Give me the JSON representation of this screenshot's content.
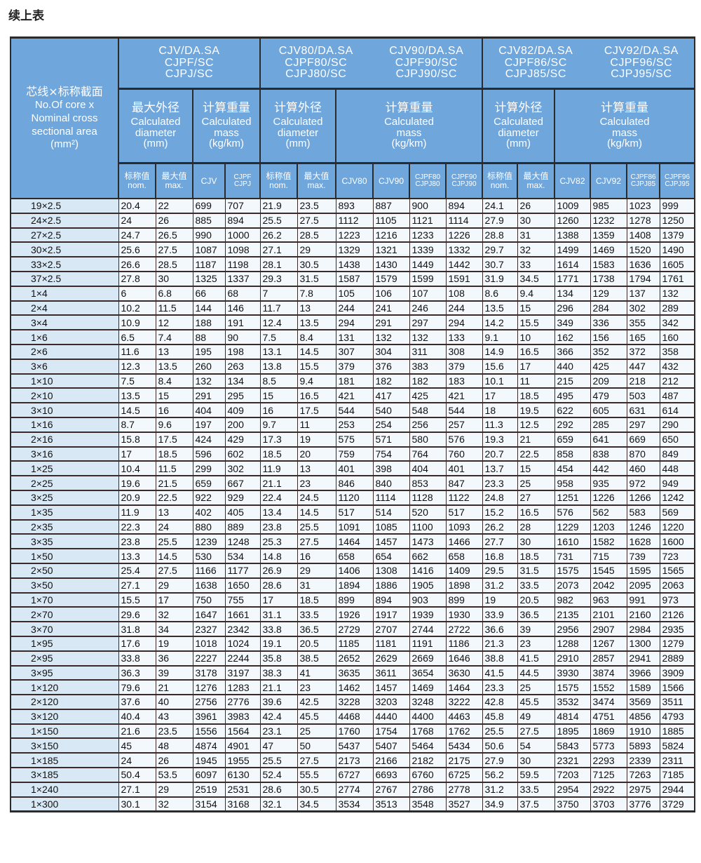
{
  "title": "续上表",
  "header": {
    "first_col": {
      "cn": "芯线×标称截面",
      "en1": "No.Of core x",
      "en2": "Nominal cross",
      "en3": "sectional area",
      "en4": "(mm²)"
    },
    "models": [
      {
        "lines": [
          "CJV/DA.SA",
          "CJPF/SC",
          "CJPJ/SC"
        ]
      },
      {
        "lines": [
          "CJV80/DA.SA",
          "CJPF80/SC",
          "CJPJ80/SC"
        ],
        "lines2": [
          "CJV90/DA.SA",
          "CJPF90/SC",
          "CJPJ90/SC"
        ]
      },
      {
        "lines": [
          "CJV82/DA.SA",
          "CJPF86/SC",
          "CJPJ85/SC"
        ],
        "lines2": [
          "CJV92/DA.SA",
          "CJPF96/SC",
          "CJPJ95/SC"
        ]
      }
    ],
    "groups": [
      {
        "cn": "最大外径",
        "en1": "Calculated",
        "en2": "diameter",
        "en3": "(mm)"
      },
      {
        "cn": "计算重量",
        "en1": "Calculated",
        "en2": "mass",
        "en3": "(kg/km)"
      },
      {
        "cn": "计算外径",
        "en1": "Calculated",
        "en2": "diameter",
        "en3": "(mm)"
      },
      {
        "cn": "计算重量",
        "en1": "Calculated",
        "en2": "mass",
        "en3": "(kg/km)"
      },
      {
        "cn": "计算外径",
        "en1": "Calculated",
        "en2": "diameter",
        "en3": "(mm)"
      },
      {
        "cn": "计算重量",
        "en1": "Calculated",
        "en2": "mass",
        "en3": "(kg/km)"
      }
    ],
    "subcols": [
      [
        "标称值",
        "nom."
      ],
      [
        "最大值",
        "max."
      ],
      [
        "CJV",
        ""
      ],
      [
        "CJPF",
        "CJPJ"
      ],
      [
        "标称值",
        "nom."
      ],
      [
        "最大值",
        "max."
      ],
      [
        "CJV80",
        ""
      ],
      [
        "CJV90",
        ""
      ],
      [
        "CJPF80",
        "CJPJ80"
      ],
      [
        "CJPF90",
        "CJPJ90"
      ],
      [
        "标称值",
        "nom."
      ],
      [
        "最大值",
        "max."
      ],
      [
        "CJV82",
        ""
      ],
      [
        "CJV92",
        ""
      ],
      [
        "CJPF86",
        "CJPJ85"
      ],
      [
        "CJPF96",
        "CJPJ95"
      ]
    ]
  },
  "rows": [
    [
      "19×2.5",
      "20.4",
      "22",
      "699",
      "707",
      "21.9",
      "23.5",
      "893",
      "887",
      "900",
      "894",
      "24.1",
      "26",
      "1009",
      "985",
      "1023",
      "999"
    ],
    [
      "24×2.5",
      "24",
      "26",
      "885",
      "894",
      "25.5",
      "27.5",
      "1112",
      "1105",
      "1121",
      "1114",
      "27.9",
      "30",
      "1260",
      "1232",
      "1278",
      "1250"
    ],
    [
      "27×2.5",
      "24.7",
      "26.5",
      "990",
      "1000",
      "26.2",
      "28.5",
      "1223",
      "1216",
      "1233",
      "1226",
      "28.8",
      "31",
      "1388",
      "1359",
      "1408",
      "1379"
    ],
    [
      "30×2.5",
      "25.6",
      "27.5",
      "1087",
      "1098",
      "27.1",
      "29",
      "1329",
      "1321",
      "1339",
      "1332",
      "29.7",
      "32",
      "1499",
      "1469",
      "1520",
      "1490"
    ],
    [
      "33×2.5",
      "26.6",
      "28.5",
      "1187",
      "1198",
      "28.1",
      "30.5",
      "1438",
      "1430",
      "1449",
      "1442",
      "30.7",
      "33",
      "1614",
      "1583",
      "1636",
      "1605"
    ],
    [
      "37×2.5",
      "27.8",
      "30",
      "1325",
      "1337",
      "29.3",
      "31.5",
      "1587",
      "1579",
      "1599",
      "1591",
      "31.9",
      "34.5",
      "1771",
      "1738",
      "1794",
      "1761"
    ],
    [
      "1×4",
      "6",
      "6.8",
      "66",
      "68",
      "7",
      "7.8",
      "105",
      "106",
      "107",
      "108",
      "8.6",
      "9.4",
      "134",
      "129",
      "137",
      "132"
    ],
    [
      "2×4",
      "10.2",
      "11.5",
      "144",
      "146",
      "11.7",
      "13",
      "244",
      "241",
      "246",
      "244",
      "13.5",
      "15",
      "296",
      "284",
      "302",
      "289"
    ],
    [
      "3×4",
      "10.9",
      "12",
      "188",
      "191",
      "12.4",
      "13.5",
      "294",
      "291",
      "297",
      "294",
      "14.2",
      "15.5",
      "349",
      "336",
      "355",
      "342"
    ],
    [
      "1×6",
      "6.5",
      "7.4",
      "88",
      "90",
      "7.5",
      "8.4",
      "131",
      "132",
      "132",
      "133",
      "9.1",
      "10",
      "162",
      "156",
      "165",
      "160"
    ],
    [
      "2×6",
      "11.6",
      "13",
      "195",
      "198",
      "13.1",
      "14.5",
      "307",
      "304",
      "311",
      "308",
      "14.9",
      "16.5",
      "366",
      "352",
      "372",
      "358"
    ],
    [
      "3×6",
      "12.3",
      "13.5",
      "260",
      "263",
      "13.8",
      "15.5",
      "379",
      "376",
      "383",
      "379",
      "15.6",
      "17",
      "440",
      "425",
      "447",
      "432"
    ],
    [
      "1×10",
      "7.5",
      "8.4",
      "132",
      "134",
      "8.5",
      "9.4",
      "181",
      "182",
      "182",
      "183",
      "10.1",
      "11",
      "215",
      "209",
      "218",
      "212"
    ],
    [
      "2×10",
      "13.5",
      "15",
      "291",
      "295",
      "15",
      "16.5",
      "421",
      "417",
      "425",
      "421",
      "17",
      "18.5",
      "495",
      "479",
      "503",
      "487"
    ],
    [
      "3×10",
      "14.5",
      "16",
      "404",
      "409",
      "16",
      "17.5",
      "544",
      "540",
      "548",
      "544",
      "18",
      "19.5",
      "622",
      "605",
      "631",
      "614"
    ],
    [
      "1×16",
      "8.7",
      "9.6",
      "197",
      "200",
      "9.7",
      "11",
      "253",
      "254",
      "256",
      "257",
      "11.3",
      "12.5",
      "292",
      "285",
      "297",
      "290"
    ],
    [
      "2×16",
      "15.8",
      "17.5",
      "424",
      "429",
      "17.3",
      "19",
      "575",
      "571",
      "580",
      "576",
      "19.3",
      "21",
      "659",
      "641",
      "669",
      "650"
    ],
    [
      "3×16",
      "17",
      "18.5",
      "596",
      "602",
      "18.5",
      "20",
      "759",
      "754",
      "764",
      "760",
      "20.7",
      "22.5",
      "858",
      "838",
      "870",
      "849"
    ],
    [
      "1×25",
      "10.4",
      "11.5",
      "299",
      "302",
      "11.9",
      "13",
      "401",
      "398",
      "404",
      "401",
      "13.7",
      "15",
      "454",
      "442",
      "460",
      "448"
    ],
    [
      "2×25",
      "19.6",
      "21.5",
      "659",
      "667",
      "21.1",
      "23",
      "846",
      "840",
      "853",
      "847",
      "23.3",
      "25",
      "958",
      "935",
      "972",
      "949"
    ],
    [
      "3×25",
      "20.9",
      "22.5",
      "922",
      "929",
      "22.4",
      "24.5",
      "1120",
      "1114",
      "1128",
      "1122",
      "24.8",
      "27",
      "1251",
      "1226",
      "1266",
      "1242"
    ],
    [
      "1×35",
      "11.9",
      "13",
      "402",
      "405",
      "13.4",
      "14.5",
      "517",
      "514",
      "520",
      "517",
      "15.2",
      "16.5",
      "576",
      "562",
      "583",
      "569"
    ],
    [
      "2×35",
      "22.3",
      "24",
      "880",
      "889",
      "23.8",
      "25.5",
      "1091",
      "1085",
      "1100",
      "1093",
      "26.2",
      "28",
      "1229",
      "1203",
      "1246",
      "1220"
    ],
    [
      "3×35",
      "23.8",
      "25.5",
      "1239",
      "1248",
      "25.3",
      "27.5",
      "1464",
      "1457",
      "1473",
      "1466",
      "27.7",
      "30",
      "1610",
      "1582",
      "1628",
      "1600"
    ],
    [
      "1×50",
      "13.3",
      "14.5",
      "530",
      "534",
      "14.8",
      "16",
      "658",
      "654",
      "662",
      "658",
      "16.8",
      "18.5",
      "731",
      "715",
      "739",
      "723"
    ],
    [
      "2×50",
      "25.4",
      "27.5",
      "1166",
      "1177",
      "26.9",
      "29",
      "1406",
      "1308",
      "1416",
      "1409",
      "29.5",
      "31.5",
      "1575",
      "1545",
      "1595",
      "1565"
    ],
    [
      "3×50",
      "27.1",
      "29",
      "1638",
      "1650",
      "28.6",
      "31",
      "1894",
      "1886",
      "1905",
      "1898",
      "31.2",
      "33.5",
      "2073",
      "2042",
      "2095",
      "2063"
    ],
    [
      "1×70",
      "15.5",
      "17",
      "750",
      "755",
      "17",
      "18.5",
      "899",
      "894",
      "903",
      "899",
      "19",
      "20.5",
      "982",
      "963",
      "991",
      "973"
    ],
    [
      "2×70",
      "29.6",
      "32",
      "1647",
      "1661",
      "31.1",
      "33.5",
      "1926",
      "1917",
      "1939",
      "1930",
      "33.9",
      "36.5",
      "2135",
      "2101",
      "2160",
      "2126"
    ],
    [
      "3×70",
      "31.8",
      "34",
      "2327",
      "2342",
      "33.8",
      "36.5",
      "2729",
      "2707",
      "2744",
      "2722",
      "36.6",
      "39",
      "2956",
      "2907",
      "2984",
      "2935"
    ],
    [
      "1×95",
      "17.6",
      "19",
      "1018",
      "1024",
      "19.1",
      "20.5",
      "1185",
      "1181",
      "1191",
      "1186",
      "21.3",
      "23",
      "1288",
      "1267",
      "1300",
      "1279"
    ],
    [
      "2×95",
      "33.8",
      "36",
      "2227",
      "2244",
      "35.8",
      "38.5",
      "2652",
      "2629",
      "2669",
      "1646",
      "38.8",
      "41.5",
      "2910",
      "2857",
      "2941",
      "2889"
    ],
    [
      "3×95",
      "36.3",
      "39",
      "3178",
      "3197",
      "38.3",
      "41",
      "3635",
      "3611",
      "3654",
      "3630",
      "41.5",
      "44.5",
      "3930",
      "3874",
      "3966",
      "3909"
    ],
    [
      "1×120",
      "79.6",
      "21",
      "1276",
      "1283",
      "21.1",
      "23",
      "1462",
      "1457",
      "1469",
      "1464",
      "23.3",
      "25",
      "1575",
      "1552",
      "1589",
      "1566"
    ],
    [
      "2×120",
      "37.6",
      "40",
      "2756",
      "2776",
      "39.6",
      "42.5",
      "3228",
      "3203",
      "3248",
      "3222",
      "42.8",
      "45.5",
      "3532",
      "3474",
      "3569",
      "3511"
    ],
    [
      "3×120",
      "40.4",
      "43",
      "3961",
      "3983",
      "42.4",
      "45.5",
      "4468",
      "4440",
      "4400",
      "4463",
      "45.8",
      "49",
      "4814",
      "4751",
      "4856",
      "4793"
    ],
    [
      "1×150",
      "21.6",
      "23.5",
      "1556",
      "1564",
      "23.1",
      "25",
      "1760",
      "1754",
      "1768",
      "1762",
      "25.5",
      "27.5",
      "1895",
      "1869",
      "1910",
      "1885"
    ],
    [
      "3×150",
      "45",
      "48",
      "4874",
      "4901",
      "47",
      "50",
      "5437",
      "5407",
      "5464",
      "5434",
      "50.6",
      "54",
      "5843",
      "5773",
      "5893",
      "5824"
    ],
    [
      "1×185",
      "24",
      "26",
      "1945",
      "1955",
      "25.5",
      "27.5",
      "2173",
      "2166",
      "2182",
      "2175",
      "27.9",
      "30",
      "2321",
      "2293",
      "2339",
      "2311"
    ],
    [
      "3×185",
      "50.4",
      "53.5",
      "6097",
      "6130",
      "52.4",
      "55.5",
      "6727",
      "6693",
      "6760",
      "6725",
      "56.2",
      "59.5",
      "7203",
      "7125",
      "7263",
      "7185"
    ],
    [
      "1×240",
      "27.1",
      "29",
      "2519",
      "2531",
      "28.6",
      "30.5",
      "2774",
      "2767",
      "2786",
      "2778",
      "31.2",
      "33.5",
      "2954",
      "2922",
      "2975",
      "2944"
    ],
    [
      "1×300",
      "30.1",
      "32",
      "3154",
      "3168",
      "32.1",
      "34.5",
      "3534",
      "3513",
      "3548",
      "3527",
      "34.9",
      "37.5",
      "3750",
      "3703",
      "3776",
      "3729"
    ]
  ],
  "colors": {
    "header_bg": "#6fa6dc",
    "first_col_bg": "#d9e8f5",
    "cell_bg": "#f3f8fc"
  }
}
